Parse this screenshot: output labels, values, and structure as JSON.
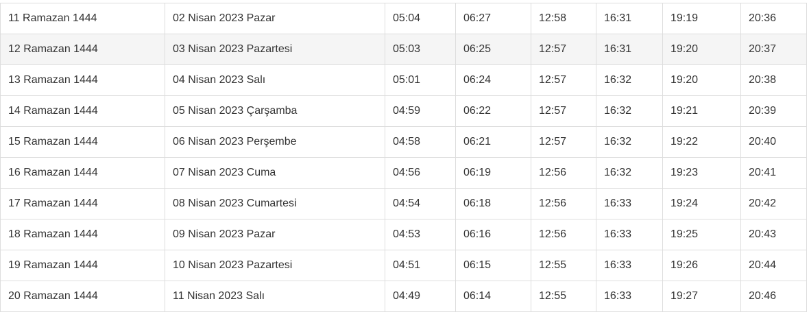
{
  "rows": [
    {
      "hijri": "11 Ramazan 1444",
      "date": "02 Nisan 2023 Pazar",
      "times": [
        "05:04",
        "06:27",
        "12:58",
        "16:31",
        "19:19",
        "20:36"
      ]
    },
    {
      "hijri": "12 Ramazan 1444",
      "date": "03 Nisan 2023 Pazartesi",
      "times": [
        "05:03",
        "06:25",
        "12:57",
        "16:31",
        "19:20",
        "20:37"
      ]
    },
    {
      "hijri": "13 Ramazan 1444",
      "date": "04 Nisan 2023 Salı",
      "times": [
        "05:01",
        "06:24",
        "12:57",
        "16:32",
        "19:20",
        "20:38"
      ]
    },
    {
      "hijri": "14 Ramazan 1444",
      "date": "05 Nisan 2023 Çarşamba",
      "times": [
        "04:59",
        "06:22",
        "12:57",
        "16:32",
        "19:21",
        "20:39"
      ]
    },
    {
      "hijri": "15 Ramazan 1444",
      "date": "06 Nisan 2023 Perşembe",
      "times": [
        "04:58",
        "06:21",
        "12:57",
        "16:32",
        "19:22",
        "20:40"
      ]
    },
    {
      "hijri": "16 Ramazan 1444",
      "date": "07 Nisan 2023 Cuma",
      "times": [
        "04:56",
        "06:19",
        "12:56",
        "16:32",
        "19:23",
        "20:41"
      ]
    },
    {
      "hijri": "17 Ramazan 1444",
      "date": "08 Nisan 2023 Cumartesi",
      "times": [
        "04:54",
        "06:18",
        "12:56",
        "16:33",
        "19:24",
        "20:42"
      ]
    },
    {
      "hijri": "18 Ramazan 1444",
      "date": "09 Nisan 2023 Pazar",
      "times": [
        "04:53",
        "06:16",
        "12:56",
        "16:33",
        "19:25",
        "20:43"
      ]
    },
    {
      "hijri": "19 Ramazan 1444",
      "date": "10 Nisan 2023 Pazartesi",
      "times": [
        "04:51",
        "06:15",
        "12:55",
        "16:33",
        "19:26",
        "20:44"
      ]
    },
    {
      "hijri": "20 Ramazan 1444",
      "date": "11 Nisan 2023 Salı",
      "times": [
        "04:49",
        "06:14",
        "12:55",
        "16:33",
        "19:27",
        "20:46"
      ]
    }
  ],
  "highlighted_row": 1
}
